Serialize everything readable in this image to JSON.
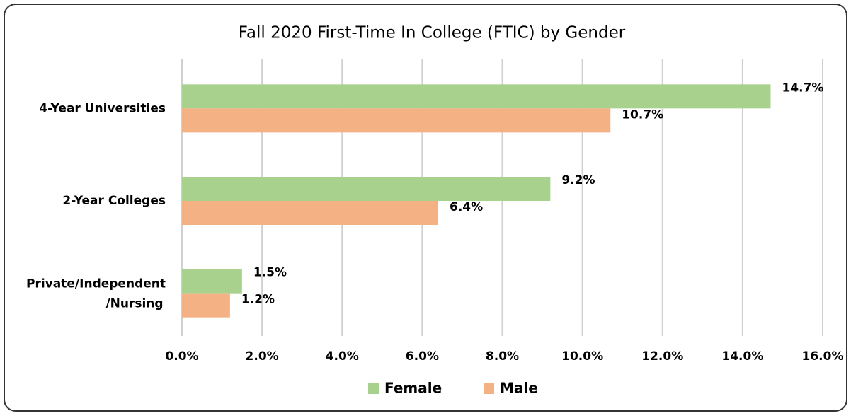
{
  "chart_data": {
    "type": "bar",
    "orientation": "horizontal",
    "title": "Fall 2020 First-Time In College (FTIC) by Gender",
    "categories": [
      "4-Year Universities",
      "2-Year Colleges",
      "Private/Independent\n/Nursing"
    ],
    "series": [
      {
        "name": "Female",
        "color": "#a9d18e",
        "values": [
          14.7,
          9.2,
          1.5
        ],
        "value_labels": [
          "14.7%",
          "9.2%",
          "1.5%"
        ]
      },
      {
        "name": "Male",
        "color": "#f4b183",
        "values": [
          10.7,
          6.4,
          1.2
        ],
        "value_labels": [
          "10.7%",
          "6.4%",
          "1.2%"
        ]
      }
    ],
    "xlim": [
      0,
      16
    ],
    "xticks": [
      {
        "value": 0,
        "label": "0.0%"
      },
      {
        "value": 2,
        "label": "2.0%"
      },
      {
        "value": 4,
        "label": "4.0%"
      },
      {
        "value": 6,
        "label": "6.0%"
      },
      {
        "value": 8,
        "label": "8.0%"
      },
      {
        "value": 10,
        "label": "10.0%"
      },
      {
        "value": 12,
        "label": "12.0%"
      },
      {
        "value": 14,
        "label": "14.0%"
      },
      {
        "value": 16,
        "label": "16.0%"
      }
    ],
    "grid": true,
    "legend": "bottom"
  }
}
